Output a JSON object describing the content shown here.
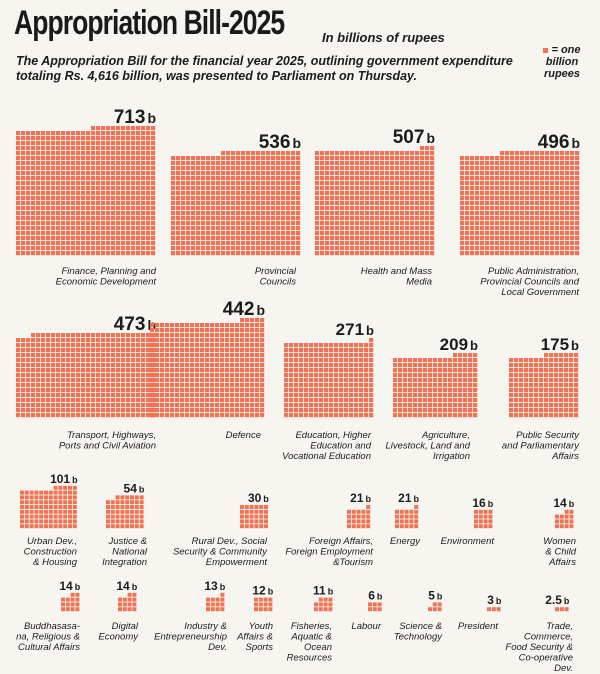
{
  "header": {
    "title": "Appropriation Bill-2025",
    "unit": "In billions of rupees",
    "subtitle": "The Appropriation Bill for the financial year 2025, outlining government expenditure totaling Rs. 4,616 billion, was presented to Parliament on Thursday.",
    "legend": "= one billion rupees"
  },
  "colors": {
    "square": "#ee7455",
    "background": "#f7f5f0"
  },
  "chart_data": {
    "type": "waffle",
    "title": "Appropriation Bill-2025",
    "unit": "In billions of rupees",
    "value_suffix": "b",
    "items": [
      {
        "label": "Finance, Planning and Economic Development",
        "value": 713,
        "display": "713"
      },
      {
        "label": "Provincial Councils",
        "value": 536,
        "display": "536"
      },
      {
        "label": "Health and Mass Media",
        "value": 507,
        "display": "507"
      },
      {
        "label": "Public Administration, Provincial Councils and Local Government",
        "value": 496,
        "display": "496"
      },
      {
        "label": "Transport, Highways, Ports and Civil Aviation",
        "value": 473,
        "display": "473"
      },
      {
        "label": "Defence",
        "value": 442,
        "display": "442"
      },
      {
        "label": "Education, Higher Education and Vocational Education",
        "value": 271,
        "display": "271"
      },
      {
        "label": "Agriculture, Livestock, Land and Irrigation",
        "value": 209,
        "display": "209"
      },
      {
        "label": "Public Security and Parliamentary Affairs",
        "value": 175,
        "display": "175"
      },
      {
        "label": "Urban Dev., Construction & Housing",
        "value": 101,
        "display": "101"
      },
      {
        "label": "Justice & National Integration",
        "value": 54,
        "display": "54"
      },
      {
        "label": "Rural Dev., Social Security & Community Empowerment",
        "value": 30,
        "display": "30"
      },
      {
        "label": "Foreign Affairs, Foreign Employment &Tourism",
        "value": 21,
        "display": "21"
      },
      {
        "label": "Energy",
        "value": 21,
        "display": "21"
      },
      {
        "label": "Environment",
        "value": 16,
        "display": "16"
      },
      {
        "label": "Women & Child Affairs",
        "value": 14,
        "display": "14"
      },
      {
        "label": "Buddhasasa-na, Religious & Cultural Affairs",
        "value": 14,
        "display": "14"
      },
      {
        "label": "Digital Economy",
        "value": 14,
        "display": "14"
      },
      {
        "label": "Industry & Entrepreneurship Dev.",
        "value": 13,
        "display": "13"
      },
      {
        "label": "Youth Affairs & Sports",
        "value": 12,
        "display": "12"
      },
      {
        "label": "Fisheries, Aquatic & Ocean Resources",
        "value": 11,
        "display": "11"
      },
      {
        "label": "Labour",
        "value": 6,
        "display": "6"
      },
      {
        "label": "Science & Technology",
        "value": 5,
        "display": "5"
      },
      {
        "label": "President",
        "value": 3,
        "display": "3"
      },
      {
        "label": "Trade, Commerce, Food Security & Co-operative Dev.",
        "value": 2.5,
        "display": "2.5"
      }
    ]
  }
}
